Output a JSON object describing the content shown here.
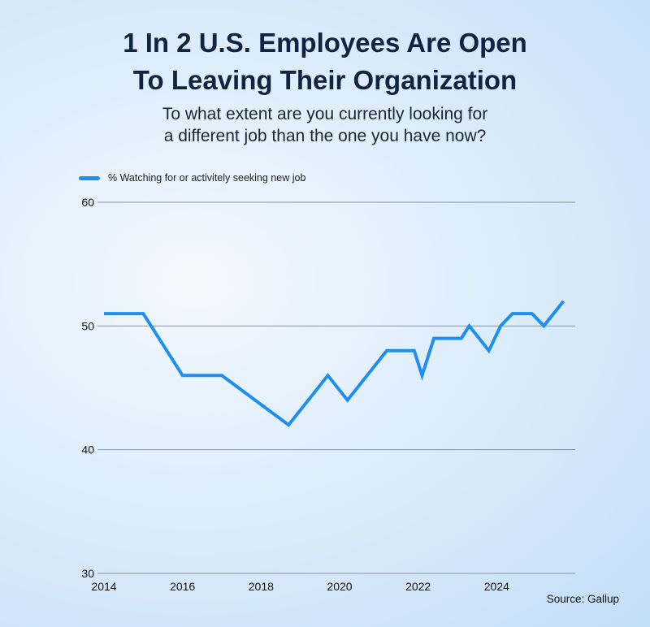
{
  "title_lines": [
    "1 In 2 U.S. Employees Are Open",
    "To Leaving Their Organization"
  ],
  "subtitle_lines": [
    "To what extent are you currently looking for",
    "a different job than the one you have now?"
  ],
  "legend_label": "% Watching for or activitely seeking new job",
  "source": "Source: Gallup",
  "colors": {
    "line": "#1e8ff0",
    "grid": "#8e959c",
    "title": "#0f2342"
  },
  "chart_data": {
    "type": "line",
    "title": "1 In 2 U.S. Employees Are Open To Leaving Their Organization",
    "subtitle": "To what extent are you currently looking for a different job than the one you have now?",
    "xlabel": "",
    "ylabel": "",
    "xlim": [
      2014,
      2026
    ],
    "ylim": [
      30,
      60
    ],
    "yticks": [
      30,
      40,
      50,
      60
    ],
    "xticks": [
      2014,
      2016,
      2018,
      2020,
      2022,
      2024
    ],
    "grid": true,
    "legend_position": "top-left",
    "series": [
      {
        "name": "% Watching for or activitely seeking new job",
        "x": [
          2014.0,
          2015.0,
          2016.0,
          2017.0,
          2018.7,
          2019.7,
          2020.2,
          2021.2,
          2021.9,
          2022.1,
          2022.4,
          2023.1,
          2023.3,
          2023.8,
          2024.1,
          2024.4,
          2024.9,
          2025.2,
          2025.7
        ],
        "values": [
          51,
          51,
          46,
          46,
          42,
          46,
          44,
          48,
          48,
          46,
          49,
          49,
          50,
          48,
          50,
          51,
          51,
          50,
          52
        ]
      }
    ]
  }
}
